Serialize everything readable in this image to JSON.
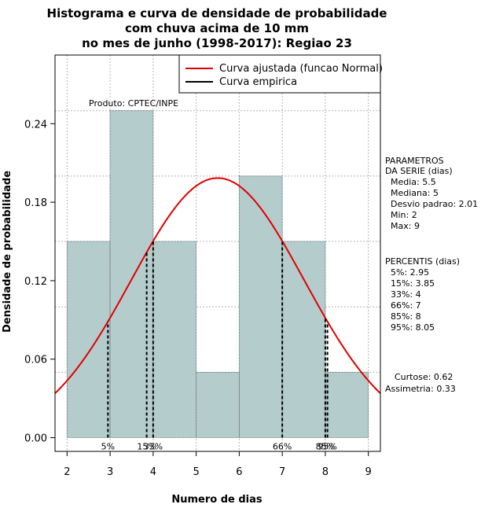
{
  "chart_data": {
    "type": "bar",
    "title_lines": [
      "Histograma e curva de densidade de probabilidade",
      "com chuva acima de 10 mm",
      "no mes de junho (1998-2017): Regiao 23"
    ],
    "xlabel": "Numero de dias",
    "ylabel": "Densidade de probabilidade",
    "xlim": [
      1.72,
      9.28
    ],
    "ylim": [
      -0.0105,
      0.2925
    ],
    "x_ticks": [
      "2",
      "3",
      "4",
      "5",
      "6",
      "7",
      "8",
      "9"
    ],
    "y_ticks": [
      "0.00",
      "0.06",
      "0.12",
      "0.18",
      "0.24"
    ],
    "y_tick_values": [
      0.0,
      0.06,
      0.12,
      0.18,
      0.24
    ],
    "bins": [
      {
        "start": 2,
        "end": 3,
        "density": 0.15
      },
      {
        "start": 3,
        "end": 4,
        "density": 0.25
      },
      {
        "start": 4,
        "end": 5,
        "density": 0.15
      },
      {
        "start": 5,
        "end": 6,
        "density": 0.05
      },
      {
        "start": 6,
        "end": 7,
        "density": 0.2
      },
      {
        "start": 7,
        "end": 8,
        "density": 0.15
      },
      {
        "start": 8,
        "end": 9,
        "density": 0.05
      }
    ],
    "normal_curve": {
      "mean": 5.5,
      "sd": 2.01
    },
    "percentile_lines": [
      {
        "label": "5%",
        "value": 2.95
      },
      {
        "label": "15%",
        "value": 3.85
      },
      {
        "label": "33%",
        "value": 4
      },
      {
        "label": "66%",
        "value": 7
      },
      {
        "label": "85%",
        "value": 8
      },
      {
        "label": "95%",
        "value": 8.05
      }
    ],
    "percentile_markers": [
      "5%",
      "15%",
      "33%",
      "66%",
      "85%",
      "95%"
    ],
    "legend": [
      {
        "label": "Curva ajustada (funcao Normal)",
        "color": "#e00000"
      },
      {
        "label": "Curva empirica",
        "color": "#000000"
      }
    ],
    "colors": {
      "bar_fill": "#b5cccc",
      "curve": "#e00000",
      "grid": "#b4b4b4",
      "bar_border": "#555555"
    }
  },
  "product_label": "Produto: CPTEC/INPE",
  "side_panel": {
    "params_lines": [
      "PARAMETROS",
      "DA SERIE (dias)",
      "Media: 5.5",
      "Mediana: 5",
      "Desvio padrao: 2.01",
      "Min: 2",
      "Max: 9"
    ],
    "percentis_lines": [
      "PERCENTIS (dias)",
      "5%: 2.95",
      "15%: 3.85",
      "33%: 4",
      "66%: 7",
      "85%: 8",
      "95%: 8.05"
    ],
    "extra_lines": [
      "Curtose: 0.62",
      "Assimetria: 0.33"
    ]
  }
}
